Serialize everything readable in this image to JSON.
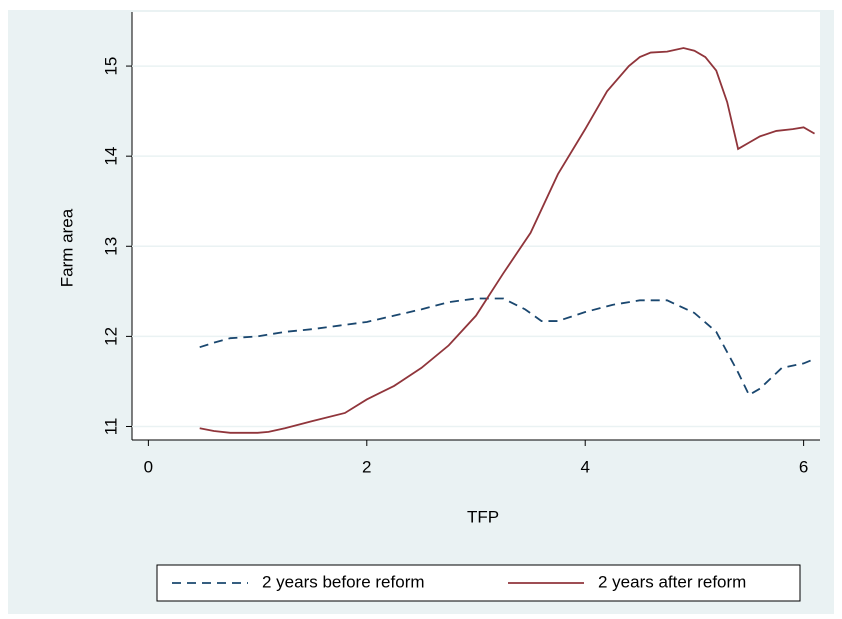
{
  "chart_data": {
    "type": "line",
    "x_label": "TFP",
    "y_label": "Farm area",
    "xlim": [
      -0.15,
      6.15
    ],
    "xticks": [
      0,
      2,
      4,
      6
    ],
    "ylim": [
      10.85,
      15.6
    ],
    "yticks": [
      11,
      12,
      13,
      14,
      15
    ],
    "grid": true,
    "legend": "bottom",
    "series": [
      {
        "name": "2 years before reform",
        "color": "#1a476f",
        "dash": true,
        "x": [
          0.47,
          0.6,
          0.75,
          1.0,
          1.25,
          1.5,
          1.75,
          2.0,
          2.25,
          2.5,
          2.75,
          3.0,
          3.25,
          3.45,
          3.6,
          3.75,
          4.0,
          4.25,
          4.5,
          4.75,
          5.0,
          5.2,
          5.4,
          5.5,
          5.6,
          5.8,
          6.0,
          6.1
        ],
        "values": [
          11.88,
          11.93,
          11.98,
          12.0,
          12.05,
          12.08,
          12.12,
          12.16,
          12.23,
          12.3,
          12.38,
          12.42,
          12.42,
          12.3,
          12.17,
          12.17,
          12.27,
          12.35,
          12.4,
          12.4,
          12.26,
          12.05,
          11.6,
          11.35,
          11.42,
          11.65,
          11.7,
          11.75
        ]
      },
      {
        "name": "2 years after reform",
        "color": "#90353b",
        "dash": false,
        "x": [
          0.47,
          0.6,
          0.75,
          1.0,
          1.1,
          1.25,
          1.5,
          1.8,
          2.0,
          2.25,
          2.5,
          2.75,
          3.0,
          3.25,
          3.5,
          3.75,
          4.0,
          4.2,
          4.4,
          4.5,
          4.6,
          4.75,
          4.9,
          5.0,
          5.1,
          5.2,
          5.3,
          5.4,
          5.5,
          5.6,
          5.75,
          5.9,
          6.0,
          6.1
        ],
        "values": [
          10.98,
          10.95,
          10.93,
          10.93,
          10.94,
          10.98,
          11.06,
          11.15,
          11.3,
          11.45,
          11.65,
          11.9,
          12.23,
          12.7,
          13.15,
          13.8,
          14.3,
          14.72,
          15.0,
          15.1,
          15.15,
          15.16,
          15.2,
          15.17,
          15.1,
          14.95,
          14.6,
          14.08,
          14.15,
          14.22,
          14.28,
          14.3,
          14.32,
          14.25
        ]
      }
    ]
  }
}
